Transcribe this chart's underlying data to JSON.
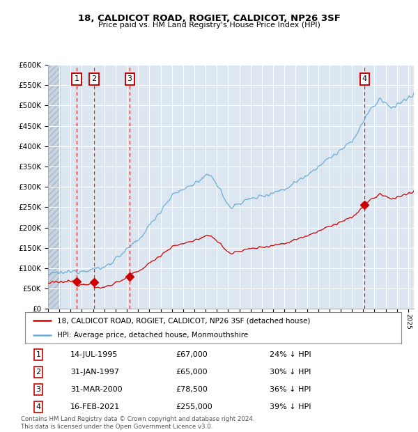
{
  "title": "18, CALDICOT ROAD, ROGIET, CALDICOT, NP26 3SF",
  "subtitle": "Price paid vs. HM Land Registry's House Price Index (HPI)",
  "legend_line1": "18, CALDICOT ROAD, ROGIET, CALDICOT, NP26 3SF (detached house)",
  "legend_line2": "HPI: Average price, detached house, Monmouthshire",
  "footer1": "Contains HM Land Registry data © Crown copyright and database right 2024.",
  "footer2": "This data is licensed under the Open Government Licence v3.0.",
  "transactions": [
    {
      "num": 1,
      "date": "14-JUL-1995",
      "price": 67000,
      "pct": "24%",
      "year": 1995.54
    },
    {
      "num": 2,
      "date": "31-JAN-1997",
      "price": 65000,
      "pct": "30%",
      "year": 1997.083
    },
    {
      "num": 3,
      "date": "31-MAR-2000",
      "price": 78500,
      "pct": "36%",
      "year": 2000.25
    },
    {
      "num": 4,
      "date": "16-FEB-2021",
      "price": 255000,
      "pct": "39%",
      "year": 2021.12
    }
  ],
  "ylim": [
    0,
    600000
  ],
  "xlim_start": 1993.0,
  "xlim_end": 2025.5,
  "bg_color": "#dce6f1",
  "grid_color": "#ffffff",
  "red_line_color": "#cc0000",
  "blue_line_color": "#6baed6",
  "marker_color": "#cc0000",
  "vline_color": "#cc0000",
  "box_color": "#cc0000",
  "table_rows": [
    {
      "num": "1",
      "date": "14-JUL-1995",
      "price": "£67,000",
      "pct": "24% ↓ HPI"
    },
    {
      "num": "2",
      "date": "31-JAN-1997",
      "price": "£65,000",
      "pct": "30% ↓ HPI"
    },
    {
      "num": "3",
      "date": "31-MAR-2000",
      "price": "£78,500",
      "pct": "36% ↓ HPI"
    },
    {
      "num": "4",
      "date": "16-FEB-2021",
      "price": "£255,000",
      "pct": "39% ↓ HPI"
    }
  ]
}
